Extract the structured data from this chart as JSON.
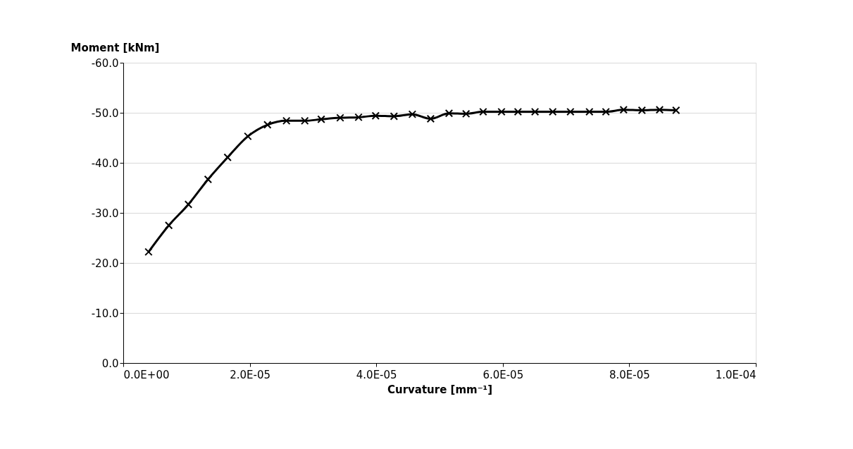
{
  "chart_data": {
    "type": "line",
    "xlabel": "Curvature [mm⁻¹]",
    "ylabel": "Moment [kNm]",
    "x": [
      4e-06,
      7.2e-06,
      1.03e-05,
      1.34e-05,
      1.65e-05,
      1.97e-05,
      2.28e-05,
      2.58e-05,
      2.87e-05,
      3.13e-05,
      3.43e-05,
      3.72e-05,
      3.99e-05,
      4.28e-05,
      4.57e-05,
      4.86e-05,
      5.15e-05,
      5.42e-05,
      5.69e-05,
      5.98e-05,
      6.24e-05,
      6.51e-05,
      6.79e-05,
      7.07e-05,
      7.37e-05,
      7.63e-05,
      7.91e-05,
      8.2e-05,
      8.48e-05,
      8.74e-05
    ],
    "series": [
      {
        "color": "#000000",
        "values": [
          -22.2,
          -27.5,
          -31.7,
          -36.7,
          -41.1,
          -45.3,
          -47.6,
          -48.4,
          -48.4,
          -48.7,
          -49.0,
          -49.1,
          -49.4,
          -49.3,
          -49.7,
          -48.8,
          -49.9,
          -49.8,
          -50.2,
          -50.2,
          -50.2,
          -50.2,
          -50.2,
          -50.2,
          -50.2,
          -50.2,
          -50.6,
          -50.5,
          -50.6,
          -50.5
        ]
      }
    ],
    "xlim": [
      0,
      0.0001
    ],
    "xticks": [
      {
        "value": 0,
        "label": "0.0E+00"
      },
      {
        "value": 2e-05,
        "label": "2.0E-05"
      },
      {
        "value": 4e-05,
        "label": "4.0E-05"
      },
      {
        "value": 6e-05,
        "label": "6.0E-05"
      },
      {
        "value": 8e-05,
        "label": "8.0E-05"
      },
      {
        "value": 0.0001,
        "label": "1.0E-04"
      }
    ],
    "ylim": [
      0,
      -60
    ],
    "yticks": [
      {
        "value": -60,
        "label": "-60.0"
      },
      {
        "value": -50,
        "label": "-50.0"
      },
      {
        "value": -40,
        "label": "-40.0"
      },
      {
        "value": -30,
        "label": "-30.0"
      },
      {
        "value": -20,
        "label": "-20.0"
      },
      {
        "value": -10,
        "label": "-10.0"
      },
      {
        "value": 0,
        "label": "0.0"
      }
    ],
    "grid": "y",
    "marker": "cross",
    "line_style": "solid"
  }
}
